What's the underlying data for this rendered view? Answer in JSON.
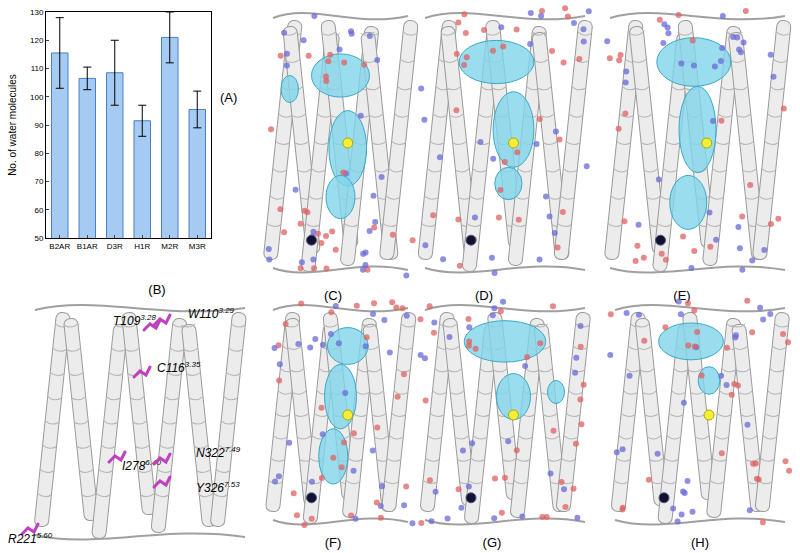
{
  "chart_data": {
    "type": "bar",
    "annotation": "(A)",
    "ylabel": "No. of water molecules",
    "categories": [
      "B2AR",
      "B1AR",
      "D3R",
      "H1R",
      "M2R",
      "M3R"
    ],
    "values": [
      115.5,
      106.5,
      108.5,
      91.5,
      121,
      95.5
    ],
    "errors": [
      12.5,
      4,
      11.5,
      5.5,
      9,
      6.5
    ],
    "color": "#a6cbf2",
    "ylim": [
      50,
      130
    ],
    "yticks": [
      50,
      60,
      70,
      80,
      90,
      100,
      110,
      120,
      130
    ],
    "grid": false
  },
  "panels": {
    "B": {
      "label": "(B)",
      "residues": [
        {
          "name": "T109",
          "sup": "3.28"
        },
        {
          "name": "W110",
          "sup": "3.29"
        },
        {
          "name": "C116",
          "sup": "3.35"
        },
        {
          "name": "I278",
          "sup": "6.40"
        },
        {
          "name": "N322",
          "sup": "7.49"
        },
        {
          "name": "Y326",
          "sup": "7.53"
        },
        {
          "name": "R221",
          "sup": "5.60"
        }
      ]
    },
    "structures": [
      "(C)",
      "(D)",
      "(E)",
      "(F)",
      "(G)",
      "(H)"
    ]
  }
}
